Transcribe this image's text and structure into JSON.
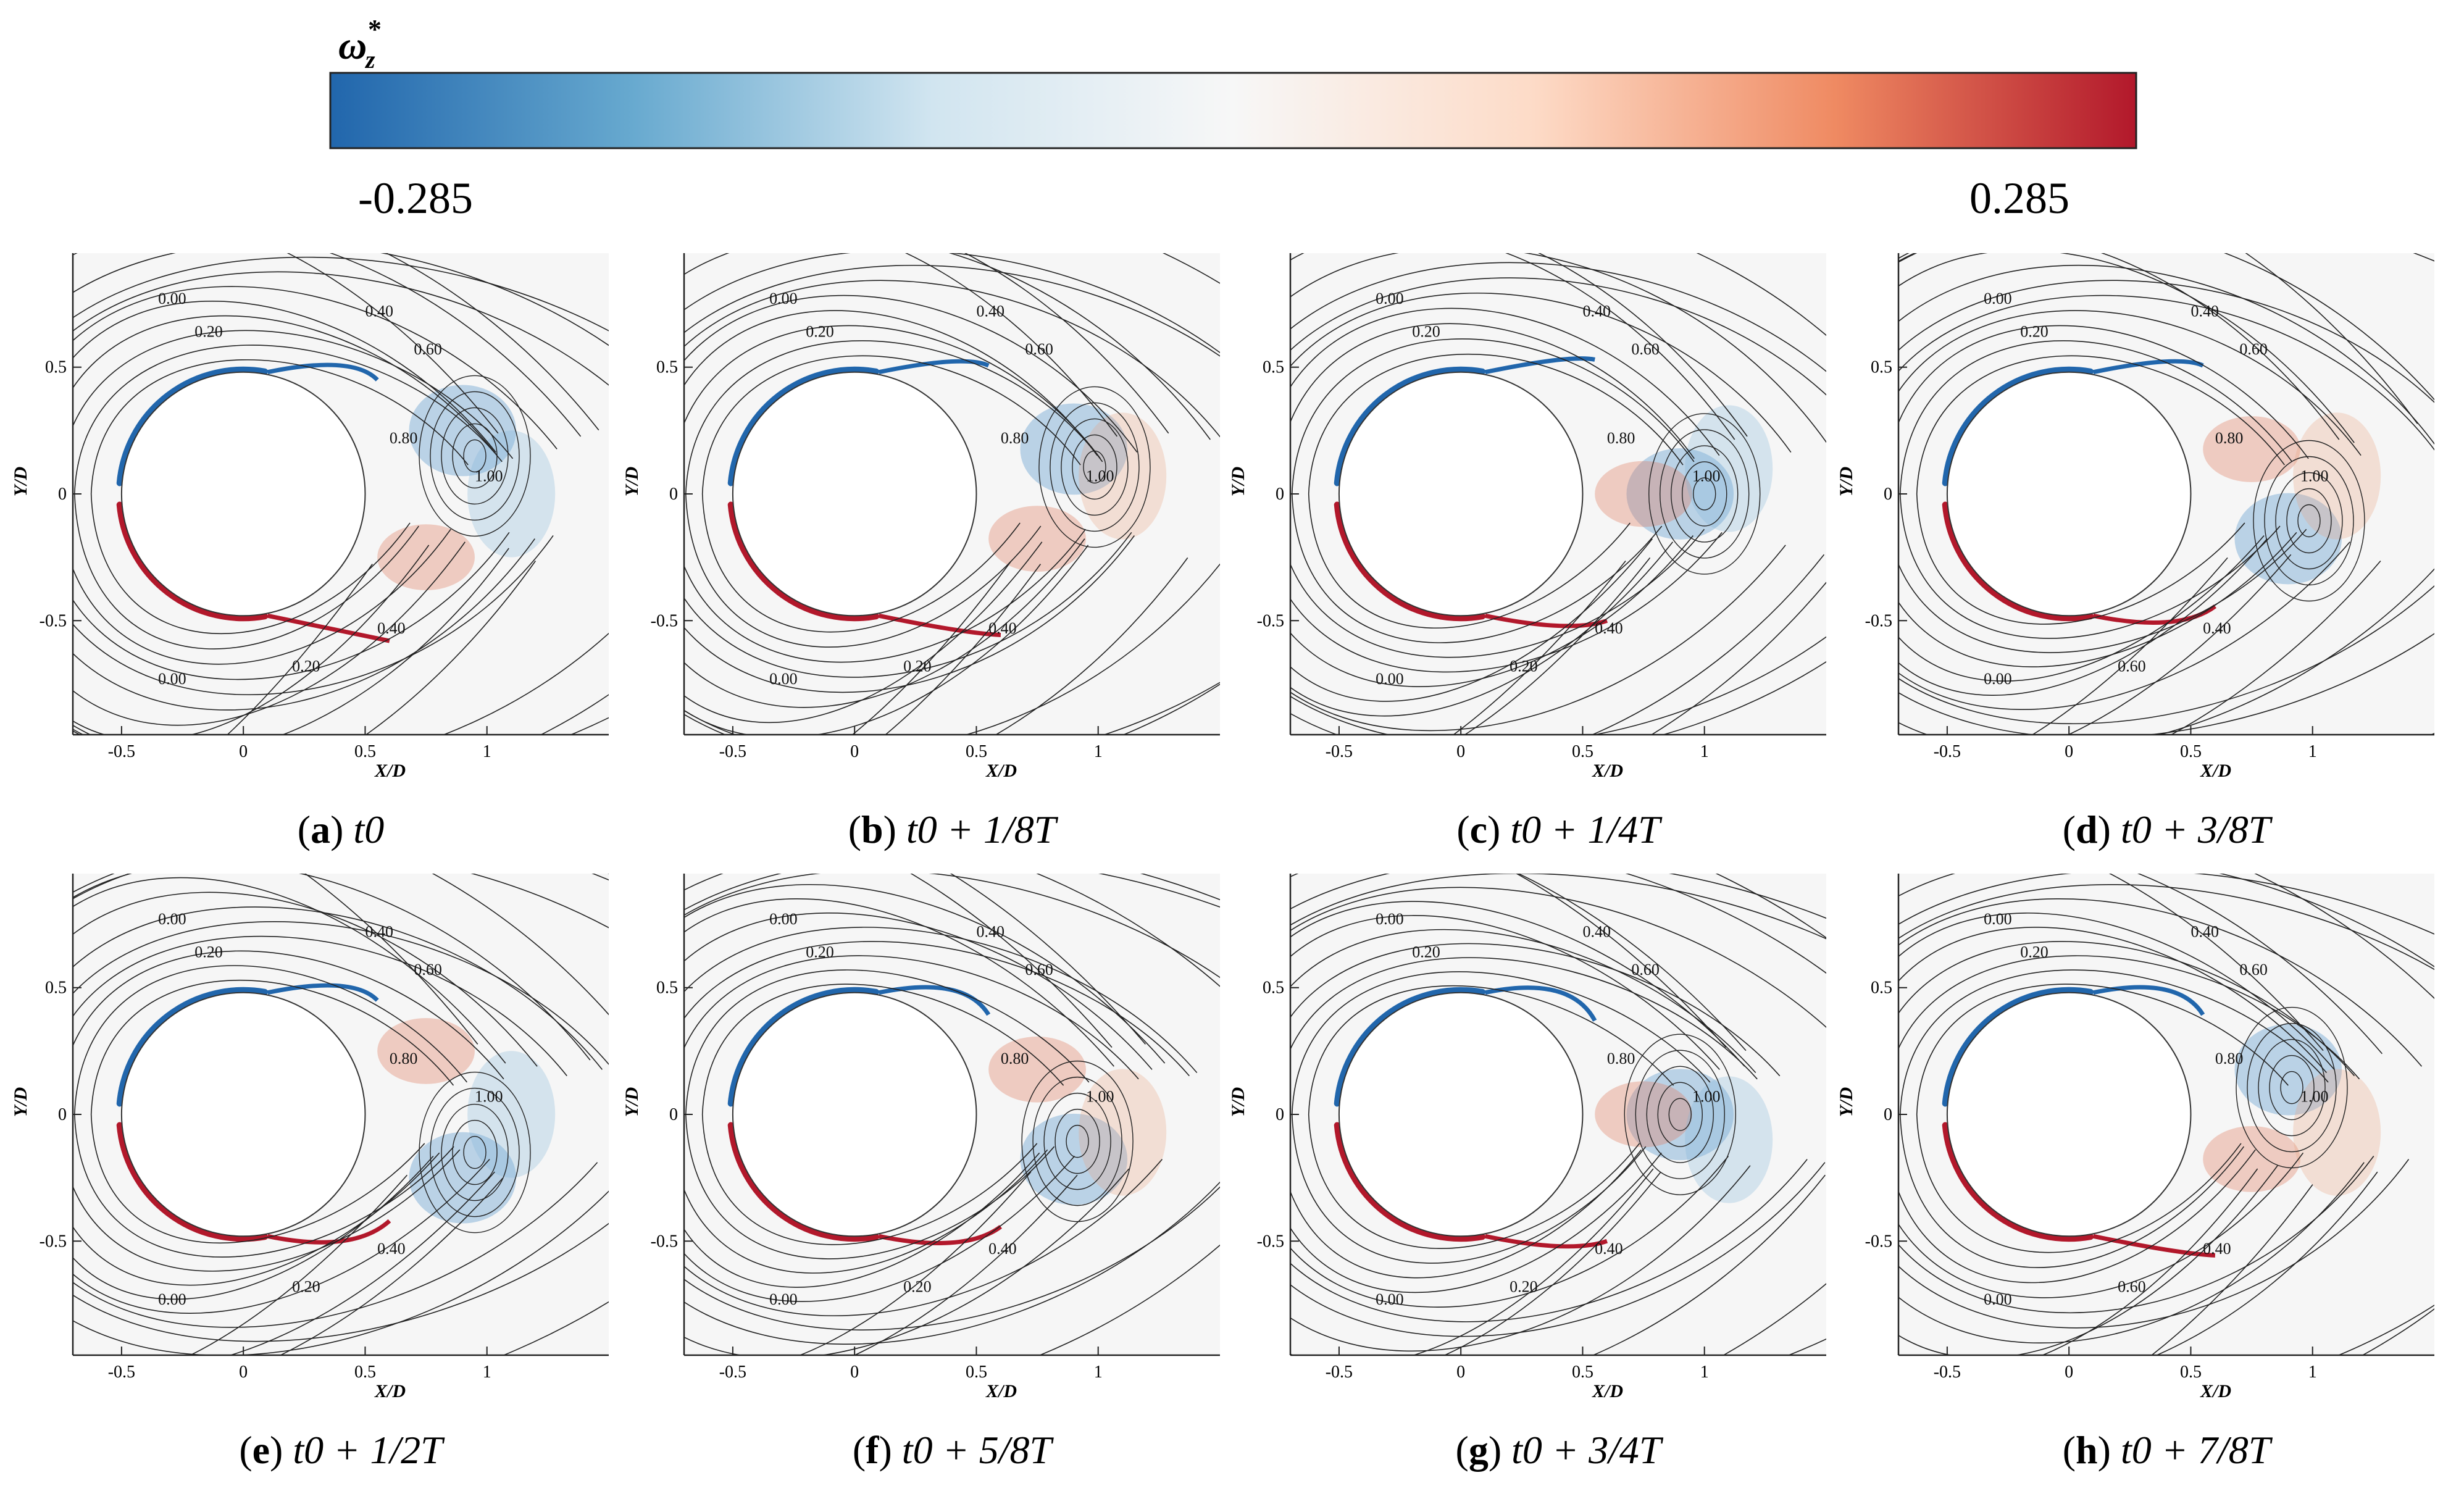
{
  "colorbar": {
    "symbol": "ω",
    "subscript": "z",
    "superscript": "*",
    "min_label": "-0.285",
    "max_label": "0.285",
    "colors": [
      "#2166ac",
      "#67a9cf",
      "#d1e5f0",
      "#f7f7f7",
      "#fddbc7",
      "#ef8a62",
      "#b2182b"
    ]
  },
  "axes": {
    "xlabel": "X/D",
    "ylabel": "Y/D",
    "x_ticks": [
      "-0.5",
      "0",
      "0.5",
      "1"
    ],
    "y_ticks": [
      "0.5",
      "0",
      "-0.5"
    ],
    "xlim": [
      -0.7,
      1.5
    ],
    "ylim": [
      -0.95,
      0.95
    ]
  },
  "panels": [
    {
      "label": "a",
      "caption": "t0",
      "contours": [
        "0.00",
        "0.20",
        "0.40",
        "0.60",
        "0.80",
        "1.00",
        "0.40",
        "0.20",
        "0.00"
      ]
    },
    {
      "label": "b",
      "caption": "t0 + 1/8T",
      "contours": [
        "0.00",
        "0.20",
        "0.40",
        "0.60",
        "0.80",
        "1.00",
        "0.40",
        "0.20",
        "0.00"
      ]
    },
    {
      "label": "c",
      "caption": "t0 + 1/4T",
      "contours": [
        "0.00",
        "0.20",
        "0.40",
        "0.60",
        "0.80",
        "1.00",
        "0.40",
        "0.20",
        "0.00"
      ]
    },
    {
      "label": "d",
      "caption": "t0 + 3/8T",
      "contours": [
        "0.00",
        "0.20",
        "0.40",
        "0.60",
        "0.80",
        "1.00",
        "0.40",
        "0.60",
        "0.00"
      ]
    },
    {
      "label": "e",
      "caption": "t0 + 1/2T",
      "contours": [
        "0.00",
        "0.20",
        "0.40",
        "0.60",
        "0.80",
        "1.00",
        "0.40",
        "0.20",
        "0.00"
      ]
    },
    {
      "label": "f",
      "caption": "t0 + 5/8T",
      "contours": [
        "0.00",
        "0.20",
        "0.40",
        "0.60",
        "0.80",
        "1.00",
        "0.40",
        "0.20",
        "0.00"
      ]
    },
    {
      "label": "g",
      "caption": "t0 + 3/4T",
      "contours": [
        "0.00",
        "0.20",
        "0.40",
        "0.60",
        "0.80",
        "1.00",
        "0.40",
        "0.20",
        "0.00"
      ]
    },
    {
      "label": "h",
      "caption": "t0 + 7/8T",
      "contours": [
        "0.00",
        "0.20",
        "0.40",
        "0.60",
        "0.80",
        "1.00",
        "0.40",
        "0.60",
        "0.00"
      ]
    }
  ]
}
